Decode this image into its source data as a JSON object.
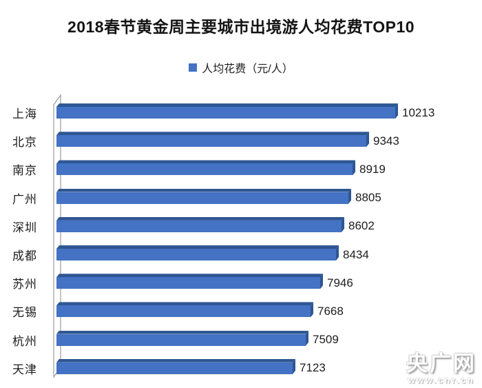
{
  "title": "2018春节黄金周主要城市出境游人均花费TOP10",
  "legend": {
    "label": "人均花费（元/人）"
  },
  "chart_data": {
    "type": "bar",
    "orientation": "horizontal",
    "style": "3d",
    "title": "2018春节黄金周主要城市出境游人均花费TOP10",
    "series_name": "人均花费（元/人）",
    "unit": "元/人",
    "categories": [
      "上海",
      "北京",
      "南京",
      "广州",
      "深圳",
      "成都",
      "苏州",
      "无锡",
      "杭州",
      "天津"
    ],
    "values": [
      10213,
      9343,
      8919,
      8805,
      8602,
      8434,
      7946,
      7668,
      7509,
      7123
    ],
    "xlim": [
      0,
      10213
    ],
    "value_labels_shown": true,
    "legend_position": "top",
    "grid": false
  },
  "watermark": {
    "site_name": "央广网",
    "site_url": "www.cnr.cn"
  },
  "colors": {
    "bar_face": "#4472C4",
    "bar_side": "#2E5693",
    "legend_swatch": "#4472C4",
    "axis_line": "#9B9B9B",
    "text": "#1C1C1C",
    "background": "#FFFFFF"
  }
}
